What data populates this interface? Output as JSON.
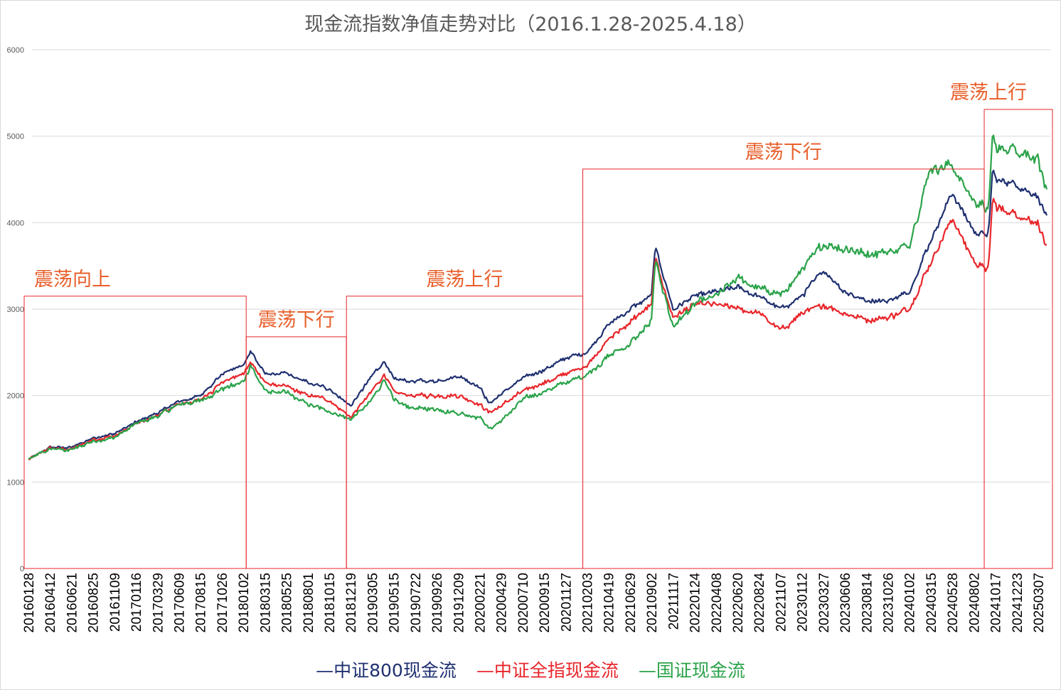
{
  "chart_data": {
    "type": "line",
    "title": "现金流指数净值走势对比（2016.1.28-2025.4.18）",
    "ylim": [
      0,
      6000
    ],
    "yticks": [
      "0",
      "1000",
      "2000",
      "3000",
      "4000",
      "5000",
      "6000"
    ],
    "x_tick_labels": [
      "20160128",
      "20160412",
      "20160621",
      "20160825",
      "20161109",
      "20170116",
      "20170329",
      "20170609",
      "20170815",
      "20171026",
      "20180102",
      "20180315",
      "20180525",
      "20180801",
      "20181015",
      "20181219",
      "20190305",
      "20190515",
      "20190722",
      "20190926",
      "20191209",
      "20200221",
      "20200429",
      "20200710",
      "20200915",
      "20201127",
      "20210203",
      "20210419",
      "20210629",
      "20210902",
      "20211117",
      "20220124",
      "20220408",
      "20220620",
      "20220824",
      "20221107",
      "20230112",
      "20230327",
      "20230606",
      "20230814",
      "20231026",
      "20240102",
      "20240315",
      "20240528",
      "20240802",
      "20241017",
      "20241223",
      "20250307"
    ],
    "x": [
      "20160128",
      "20160412",
      "20160621",
      "20160825",
      "20161109",
      "20170116",
      "20170329",
      "20170609",
      "20170815",
      "20171026",
      "20180102",
      "20180126",
      "20180315",
      "20180525",
      "20180801",
      "20181015",
      "20181219",
      "20190305",
      "20190415",
      "20190515",
      "20190722",
      "20190926",
      "20191209",
      "20200221",
      "20200323",
      "20200429",
      "20200710",
      "20200915",
      "20201127",
      "20210203",
      "20210419",
      "20210629",
      "20210902",
      "20210915",
      "20211117",
      "20220124",
      "20220408",
      "20220620",
      "20220824",
      "20221107",
      "20230112",
      "20230327",
      "20230606",
      "20230814",
      "20231026",
      "20240102",
      "20240315",
      "20240528",
      "20240802",
      "20240923",
      "20241008",
      "20241017",
      "20241223",
      "20250307",
      "20250408",
      "20250418"
    ],
    "series": [
      {
        "name": "中证800现金流",
        "color": "#1f3070",
        "values": [
          1260,
          1400,
          1400,
          1510,
          1560,
          1690,
          1800,
          1930,
          2000,
          2250,
          2350,
          2520,
          2250,
          2250,
          2150,
          2080,
          1880,
          2230,
          2400,
          2180,
          2170,
          2170,
          2230,
          2100,
          1900,
          2020,
          2200,
          2300,
          2430,
          2500,
          2820,
          3000,
          3150,
          3720,
          3000,
          3150,
          3200,
          3250,
          3150,
          3000,
          3150,
          3450,
          3200,
          3100,
          3100,
          3200,
          3800,
          4350,
          3900,
          3850,
          4650,
          4500,
          4450,
          4300,
          4050,
          4180
        ]
      },
      {
        "name": "中证全指现金流",
        "color": "#e8262b",
        "values": [
          1260,
          1390,
          1380,
          1490,
          1530,
          1670,
          1770,
          1900,
          1950,
          2150,
          2250,
          2400,
          2150,
          2100,
          2000,
          1950,
          1750,
          2050,
          2250,
          2030,
          2000,
          2000,
          2000,
          1900,
          1800,
          1880,
          2050,
          2150,
          2250,
          2350,
          2650,
          2850,
          3050,
          3580,
          2900,
          3050,
          3050,
          3000,
          2950,
          2750,
          2950,
          3050,
          2950,
          2880,
          2900,
          3000,
          3550,
          4050,
          3550,
          3450,
          4300,
          4180,
          4100,
          4000,
          3700,
          3880
        ]
      },
      {
        "name": "国证现金流",
        "color": "#2ba34a",
        "values": [
          1260,
          1380,
          1370,
          1470,
          1510,
          1670,
          1760,
          1900,
          1940,
          2080,
          2150,
          2350,
          2050,
          2030,
          1900,
          1820,
          1720,
          1950,
          2200,
          1930,
          1850,
          1850,
          1800,
          1750,
          1620,
          1700,
          1950,
          2050,
          2150,
          2250,
          2450,
          2600,
          2850,
          3560,
          2800,
          3050,
          3150,
          3350,
          3250,
          3150,
          3450,
          3750,
          3700,
          3650,
          3650,
          3750,
          4650,
          4650,
          4250,
          4150,
          5050,
          4850,
          4850,
          4750,
          4350,
          4450
        ]
      }
    ],
    "regions": [
      {
        "start": "20160128",
        "end": "20180126",
        "top": 3150,
        "label": "震荡向上"
      },
      {
        "start": "20180126",
        "end": "20181219",
        "top": 2680,
        "label": "震荡下行"
      },
      {
        "start": "20181219",
        "end": "20210203",
        "top": 3150,
        "label": "震荡上行"
      },
      {
        "start": "20210203",
        "end": "20240923",
        "top": 4620,
        "label": "震荡下行"
      },
      {
        "start": "20240923",
        "end": "20250418",
        "top": 5310,
        "label": "震荡上行"
      }
    ],
    "legend_position": "bottom",
    "grid": true
  }
}
